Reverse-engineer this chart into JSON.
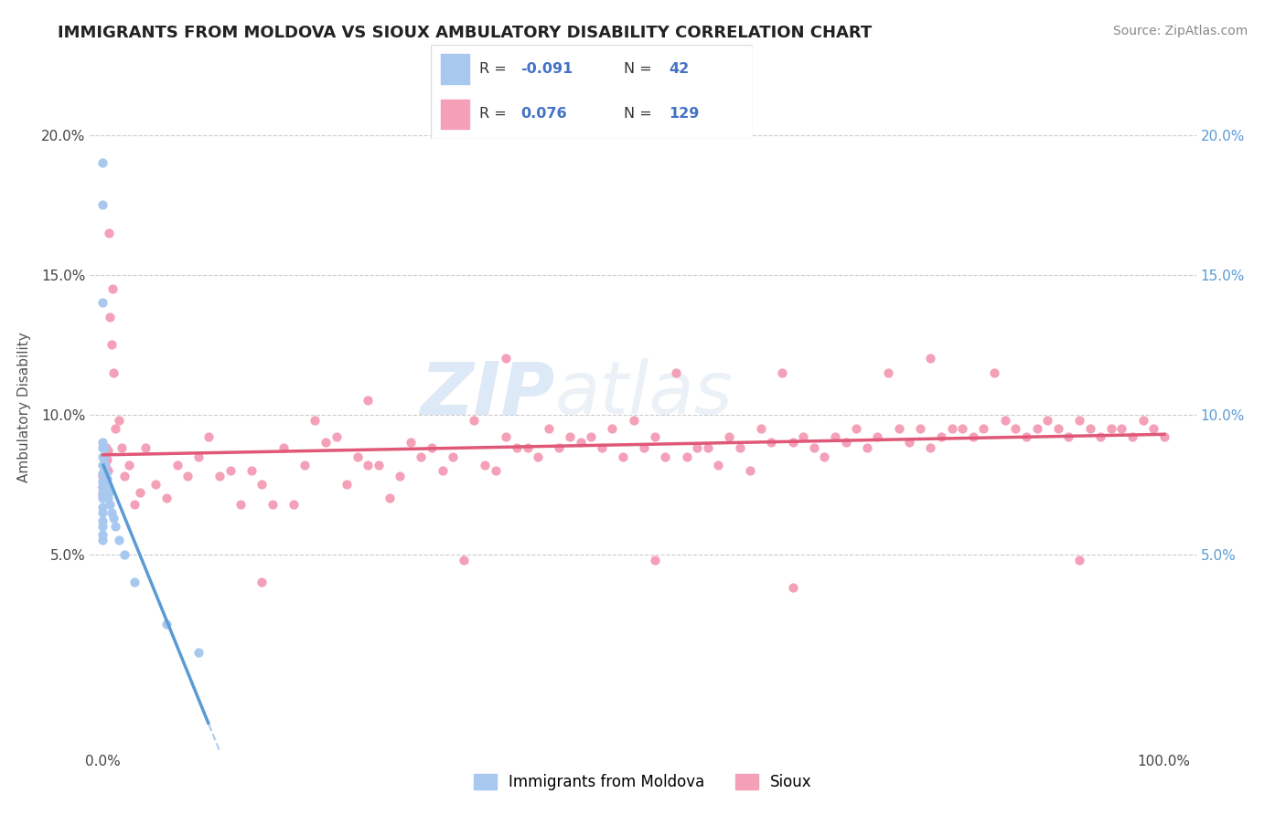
{
  "title": "IMMIGRANTS FROM MOLDOVA VS SIOUX AMBULATORY DISABILITY CORRELATION CHART",
  "source": "Source: ZipAtlas.com",
  "ylabel": "Ambulatory Disability",
  "y_ticks": [
    0.05,
    0.1,
    0.15,
    0.2
  ],
  "y_tick_labels": [
    "5.0%",
    "10.0%",
    "15.0%",
    "20.0%"
  ],
  "xlim": [
    -0.012,
    1.03
  ],
  "ylim": [
    -0.02,
    0.225
  ],
  "color_blue": "#A8C8F0",
  "color_pink": "#F4A0B8",
  "color_blue_line": "#5B9BD5",
  "color_pink_line": "#E05878",
  "color_dashed": "#AACCEE",
  "watermark_zip": "ZIP",
  "watermark_atlas": "atlas",
  "blue_x": [
    0.0,
    0.0,
    0.0,
    0.0,
    0.0,
    0.0,
    0.0,
    0.0,
    0.0,
    0.0,
    0.0,
    0.0,
    0.0,
    0.0,
    0.0,
    0.0,
    0.0,
    0.0,
    0.001,
    0.001,
    0.001,
    0.001,
    0.001,
    0.001,
    0.002,
    0.002,
    0.002,
    0.003,
    0.003,
    0.004,
    0.005,
    0.005,
    0.006,
    0.007,
    0.008,
    0.01,
    0.012,
    0.015,
    0.02,
    0.03,
    0.06,
    0.09
  ],
  "blue_y": [
    0.19,
    0.175,
    0.14,
    0.09,
    0.088,
    0.085,
    0.082,
    0.079,
    0.076,
    0.074,
    0.072,
    0.07,
    0.067,
    0.065,
    0.062,
    0.06,
    0.057,
    0.055,
    0.088,
    0.085,
    0.082,
    0.079,
    0.076,
    0.072,
    0.082,
    0.078,
    0.074,
    0.079,
    0.075,
    0.077,
    0.074,
    0.07,
    0.072,
    0.068,
    0.065,
    0.063,
    0.06,
    0.055,
    0.05,
    0.04,
    0.025,
    0.015
  ],
  "pink_x": [
    0.0,
    0.0,
    0.0,
    0.001,
    0.001,
    0.002,
    0.002,
    0.003,
    0.003,
    0.004,
    0.005,
    0.005,
    0.006,
    0.007,
    0.008,
    0.009,
    0.01,
    0.012,
    0.015,
    0.018,
    0.02,
    0.025,
    0.03,
    0.035,
    0.04,
    0.05,
    0.06,
    0.07,
    0.08,
    0.09,
    0.1,
    0.11,
    0.12,
    0.13,
    0.14,
    0.15,
    0.16,
    0.17,
    0.18,
    0.19,
    0.2,
    0.21,
    0.22,
    0.23,
    0.24,
    0.25,
    0.26,
    0.27,
    0.28,
    0.29,
    0.3,
    0.31,
    0.32,
    0.33,
    0.34,
    0.35,
    0.36,
    0.37,
    0.38,
    0.39,
    0.4,
    0.41,
    0.42,
    0.43,
    0.44,
    0.45,
    0.46,
    0.47,
    0.48,
    0.49,
    0.5,
    0.51,
    0.52,
    0.53,
    0.54,
    0.55,
    0.56,
    0.57,
    0.58,
    0.59,
    0.6,
    0.61,
    0.62,
    0.63,
    0.64,
    0.65,
    0.66,
    0.67,
    0.68,
    0.69,
    0.7,
    0.71,
    0.72,
    0.73,
    0.74,
    0.75,
    0.76,
    0.77,
    0.78,
    0.79,
    0.8,
    0.81,
    0.82,
    0.83,
    0.84,
    0.85,
    0.86,
    0.87,
    0.88,
    0.89,
    0.9,
    0.91,
    0.92,
    0.93,
    0.94,
    0.95,
    0.96,
    0.97,
    0.98,
    0.99,
    1.0,
    0.15,
    0.25,
    0.38,
    0.52,
    0.65,
    0.78,
    0.92
  ],
  "pink_y": [
    0.078,
    0.074,
    0.071,
    0.085,
    0.079,
    0.082,
    0.076,
    0.088,
    0.081,
    0.084,
    0.087,
    0.08,
    0.165,
    0.135,
    0.125,
    0.145,
    0.115,
    0.095,
    0.098,
    0.088,
    0.078,
    0.082,
    0.068,
    0.072,
    0.088,
    0.075,
    0.07,
    0.082,
    0.078,
    0.085,
    0.092,
    0.078,
    0.08,
    0.068,
    0.08,
    0.075,
    0.068,
    0.088,
    0.068,
    0.082,
    0.098,
    0.09,
    0.092,
    0.075,
    0.085,
    0.082,
    0.082,
    0.07,
    0.078,
    0.09,
    0.085,
    0.088,
    0.08,
    0.085,
    0.048,
    0.098,
    0.082,
    0.08,
    0.092,
    0.088,
    0.088,
    0.085,
    0.095,
    0.088,
    0.092,
    0.09,
    0.092,
    0.088,
    0.095,
    0.085,
    0.098,
    0.088,
    0.092,
    0.085,
    0.115,
    0.085,
    0.088,
    0.088,
    0.082,
    0.092,
    0.088,
    0.08,
    0.095,
    0.09,
    0.115,
    0.09,
    0.092,
    0.088,
    0.085,
    0.092,
    0.09,
    0.095,
    0.088,
    0.092,
    0.115,
    0.095,
    0.09,
    0.095,
    0.088,
    0.092,
    0.095,
    0.095,
    0.092,
    0.095,
    0.115,
    0.098,
    0.095,
    0.092,
    0.095,
    0.098,
    0.095,
    0.092,
    0.098,
    0.095,
    0.092,
    0.095,
    0.095,
    0.092,
    0.098,
    0.095,
    0.092,
    0.04,
    0.105,
    0.12,
    0.048,
    0.038,
    0.12,
    0.048
  ]
}
